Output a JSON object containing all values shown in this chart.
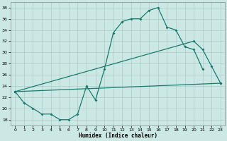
{
  "xlabel": "Humidex (Indice chaleur)",
  "bg_color": "#cce8e4",
  "grid_color": "#aacccc",
  "line_color": "#1a7a6e",
  "xlim": [
    -0.5,
    23.5
  ],
  "ylim": [
    17,
    39
  ],
  "yticks": [
    18,
    20,
    22,
    24,
    26,
    28,
    30,
    32,
    34,
    36,
    38
  ],
  "xticks": [
    0,
    1,
    2,
    3,
    4,
    5,
    6,
    7,
    8,
    9,
    10,
    11,
    12,
    13,
    14,
    15,
    16,
    17,
    18,
    19,
    20,
    21,
    22,
    23
  ],
  "line1_x": [
    0,
    1,
    2,
    3,
    4,
    5,
    6,
    7,
    8,
    9,
    10,
    11,
    12,
    13,
    14,
    15,
    16,
    17,
    18,
    19,
    20,
    21
  ],
  "line1_y": [
    23,
    21,
    20,
    19,
    19,
    18,
    18,
    19,
    24,
    21.5,
    27,
    33.5,
    35.5,
    36,
    36,
    37.5,
    38,
    34.5,
    34,
    31,
    30.5,
    27
  ],
  "line2_x": [
    0,
    23
  ],
  "line2_y": [
    23,
    24.5
  ],
  "line3_x": [
    0,
    20,
    21,
    22,
    23
  ],
  "line3_y": [
    23,
    32,
    30.5,
    27.5,
    24.5
  ]
}
